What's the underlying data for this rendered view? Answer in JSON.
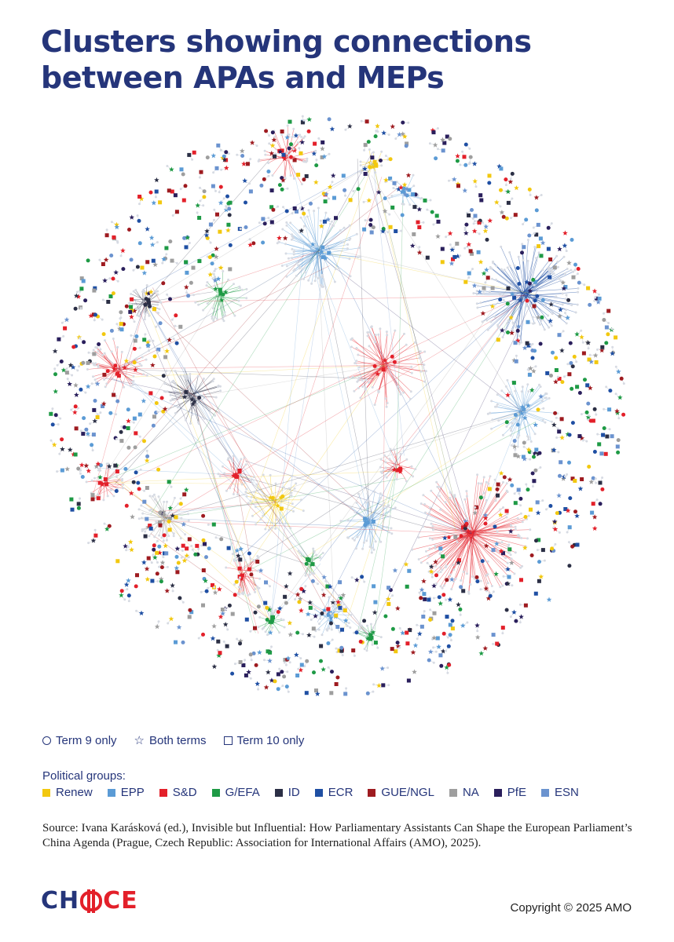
{
  "header": {
    "title": "Clusters showing connections between APAs and MEPs"
  },
  "shape_legend": [
    {
      "symbol": "circle",
      "label": "Term 9 only"
    },
    {
      "symbol": "star",
      "label": "Both terms"
    },
    {
      "symbol": "square",
      "label": "Term 10 only"
    }
  ],
  "groups_title": "Political groups:",
  "groups": [
    {
      "label": "Renew",
      "color": "#f2c80f"
    },
    {
      "label": "EPP",
      "color": "#5b9bd5"
    },
    {
      "label": "S&D",
      "color": "#e3202a"
    },
    {
      "label": "G/EFA",
      "color": "#1e9a45"
    },
    {
      "label": "ID",
      "color": "#2b2f45"
    },
    {
      "label": "ECR",
      "color": "#1f4fa3"
    },
    {
      "label": "GUE/NGL",
      "color": "#9e1b20"
    },
    {
      "label": "NA",
      "color": "#9e9e9e"
    },
    {
      "label": "PfE",
      "color": "#2a1f5c"
    },
    {
      "label": "ESN",
      "color": "#6b93cf"
    }
  ],
  "source": "Source: Ivana Karásková (ed.), Invisible but Influential: How Parliamentary Assistants Can Shape the European Parliament’s China Agenda (Prague, Czech Republic: Association for International Affairs (AMO), 2025).",
  "footer": {
    "logo_left": "CH",
    "logo_right": "CE",
    "copyright": "Copyright © 2025 AMO"
  }
}
